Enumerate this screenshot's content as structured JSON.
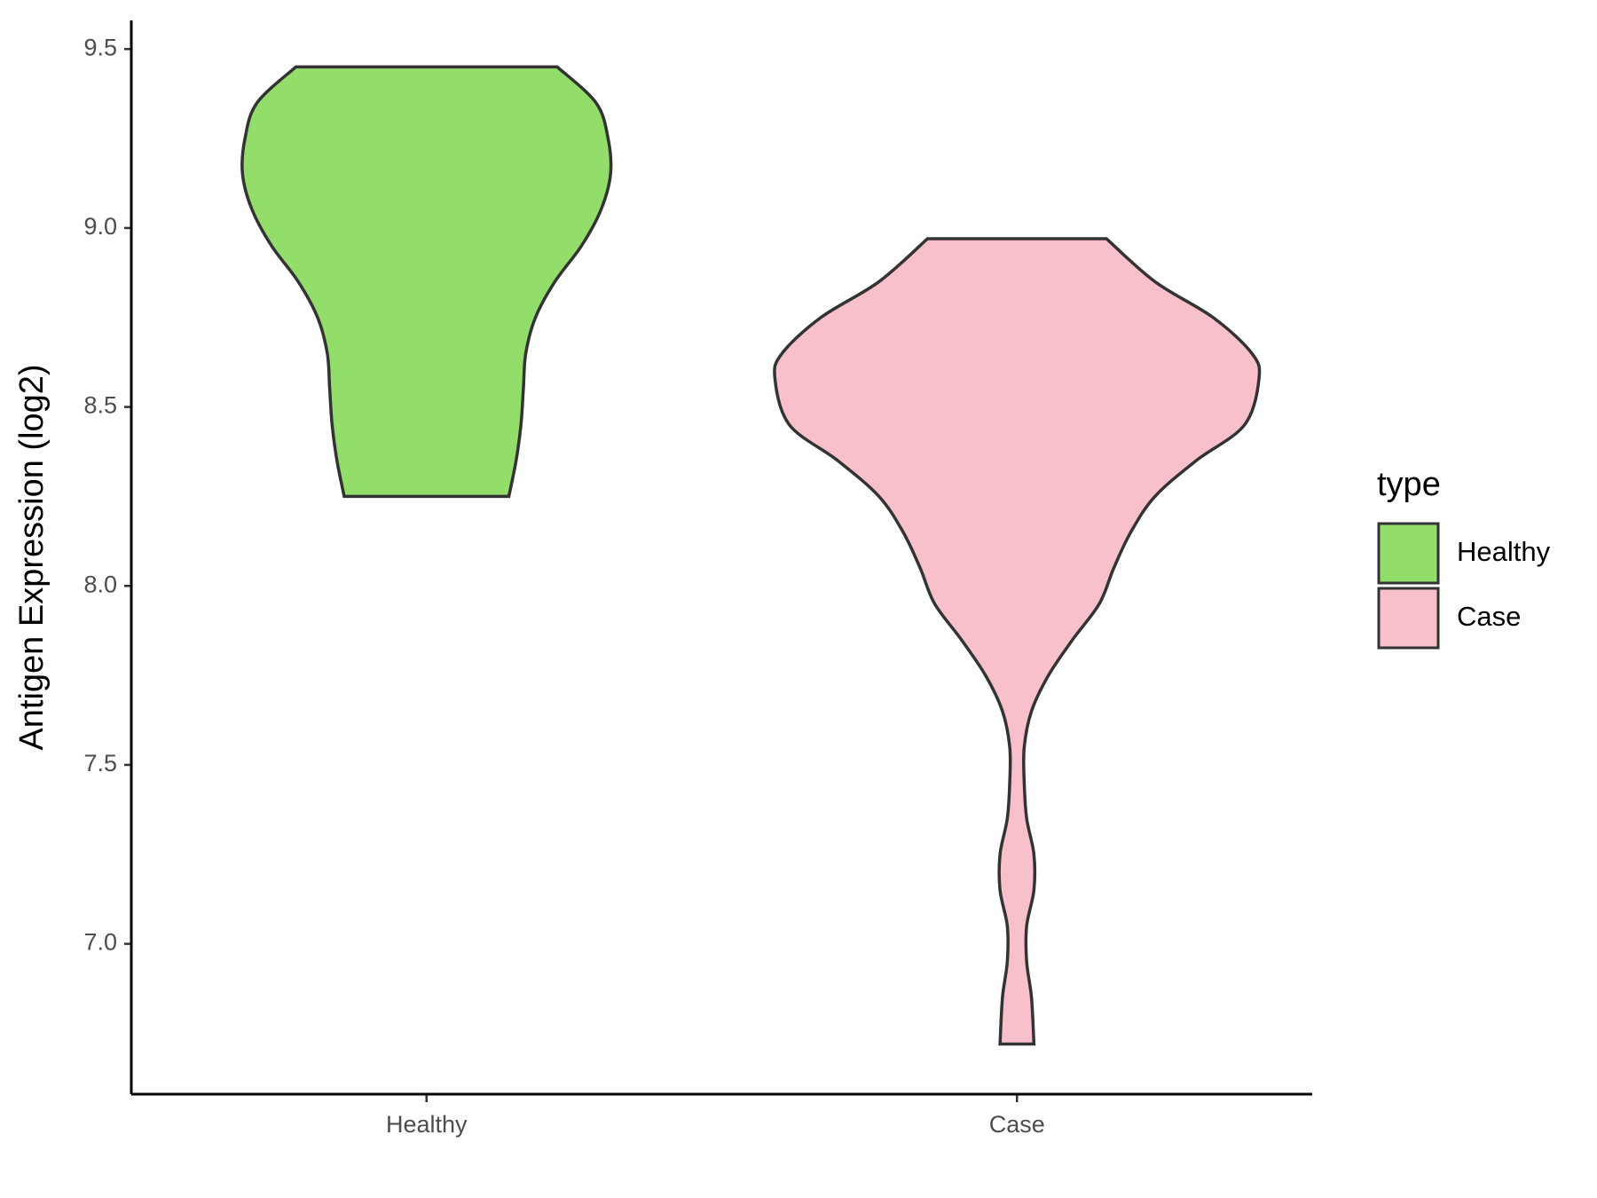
{
  "chart_data": {
    "type": "violin",
    "y_label": "Antigen Expression (log2)",
    "categories": [
      "Healthy",
      "Case"
    ],
    "legend_title": "type",
    "legend_position": "right",
    "series": [
      {
        "name": "Healthy",
        "color": "#93dd6b",
        "y": [
          9.45,
          9.35,
          9.25,
          9.15,
          9.05,
          8.95,
          8.85,
          8.75,
          8.65,
          8.55,
          8.45,
          8.35,
          8.25
        ],
        "width": [
          0.54,
          0.7,
          0.75,
          0.76,
          0.72,
          0.64,
          0.53,
          0.45,
          0.41,
          0.4,
          0.39,
          0.37,
          0.34
        ]
      },
      {
        "name": "Case",
        "color": "#f7c0cb",
        "y": [
          8.97,
          8.85,
          8.75,
          8.65,
          8.58,
          8.45,
          8.35,
          8.25,
          8.15,
          8.05,
          7.95,
          7.85,
          7.75,
          7.65,
          7.55,
          7.45,
          7.35,
          7.25,
          7.15,
          7.05,
          6.95,
          6.85,
          6.72
        ],
        "width": [
          0.37,
          0.57,
          0.81,
          0.97,
          1.0,
          0.94,
          0.74,
          0.57,
          0.47,
          0.4,
          0.34,
          0.23,
          0.13,
          0.06,
          0.03,
          0.03,
          0.04,
          0.07,
          0.07,
          0.04,
          0.04,
          0.06,
          0.07
        ]
      }
    ],
    "ylim": [
      6.58,
      9.58
    ],
    "yticks": [
      {
        "value": 7,
        "label": "7.0"
      },
      7.5,
      {
        "value": 8,
        "label": "8.0"
      },
      8.5,
      {
        "value": 9,
        "label": "9.0"
      },
      9.5
    ]
  }
}
